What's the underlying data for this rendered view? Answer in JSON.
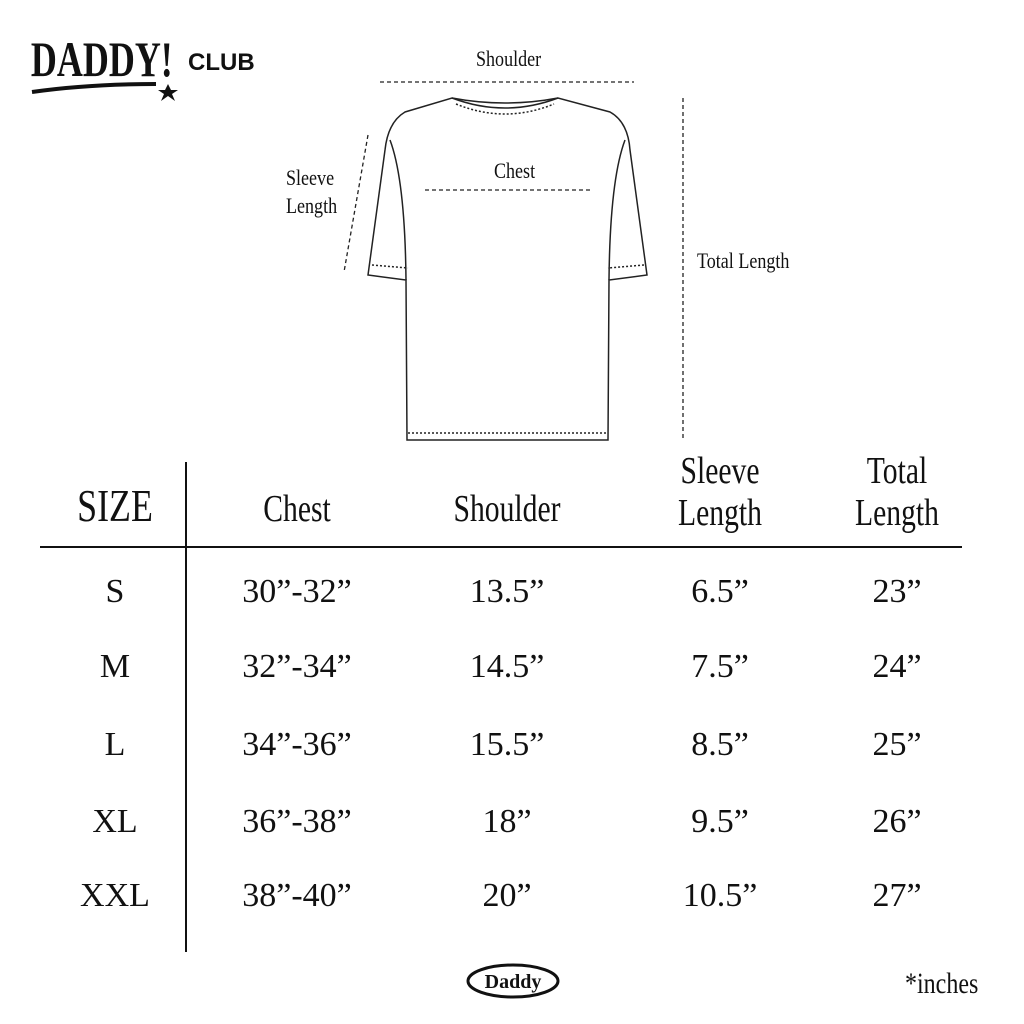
{
  "brand": {
    "logo_text": "DADDY! CLUB",
    "footer_logo": "Daddy"
  },
  "diagram": {
    "shoulder": "Shoulder",
    "chest": "Chest",
    "sleeve_length": [
      "Sleeve",
      "Length"
    ],
    "total_length": "Total Length"
  },
  "table": {
    "headers": [
      [
        "SIZE"
      ],
      [
        "Chest"
      ],
      [
        "Shoulder"
      ],
      [
        "Sleeve",
        "Length"
      ],
      [
        "Total",
        "Length"
      ]
    ],
    "rows": [
      [
        "S",
        "30”-32”",
        "13.5”",
        "6.5”",
        "23”"
      ],
      [
        "M",
        "32”-34”",
        "14.5”",
        "7.5”",
        "24”"
      ],
      [
        "L",
        "34”-36”",
        "15.5”",
        "8.5”",
        "25”"
      ],
      [
        "XL",
        "36”-38”",
        "18”",
        "9.5”",
        "26”"
      ],
      [
        "XXL",
        "38”-40”",
        "20”",
        "10.5”",
        "27”"
      ]
    ]
  },
  "unit_note": "*inches"
}
